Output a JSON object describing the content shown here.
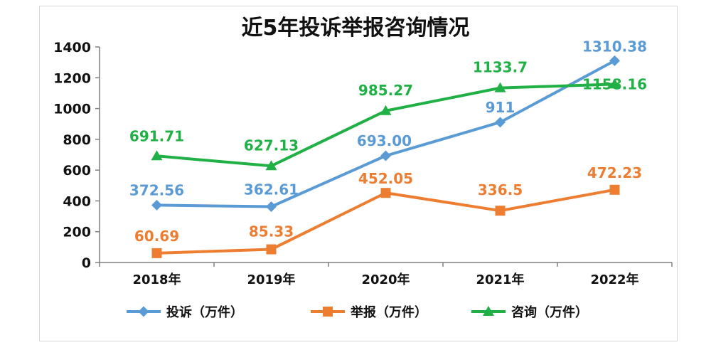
{
  "chart_data": {
    "type": "line",
    "title": "近5年投诉举报咨询情况",
    "xlabel": "",
    "ylabel": "",
    "categories": [
      "2018年",
      "2019年",
      "2020年",
      "2021年",
      "2022年"
    ],
    "ylim": [
      0,
      1400
    ],
    "yticks": [
      0,
      200,
      400,
      600,
      800,
      1000,
      1200,
      1400
    ],
    "legend_position": "bottom",
    "grid": false,
    "series": [
      {
        "name": "投诉（万件）",
        "color": "#5b9bd5",
        "marker": "diamond",
        "values": [
          372.56,
          362.61,
          693.0,
          911,
          1310.38
        ],
        "labels": [
          "372.56",
          "362.61",
          "693.00",
          "911",
          "1310.38"
        ]
      },
      {
        "name": "举报（万件）",
        "color": "#ed7d31",
        "marker": "square",
        "values": [
          60.69,
          85.33,
          452.05,
          336.5,
          472.23
        ],
        "labels": [
          "60.69",
          "85.33",
          "452.05",
          "336.5",
          "472.23"
        ]
      },
      {
        "name": "咨询（万件）",
        "color": "#20b045",
        "marker": "triangle",
        "values": [
          691.71,
          627.13,
          985.27,
          1133.7,
          1158.16
        ],
        "labels": [
          "691.71",
          "627.13",
          "985.27",
          "1133.7",
          "1158.16"
        ]
      }
    ]
  }
}
